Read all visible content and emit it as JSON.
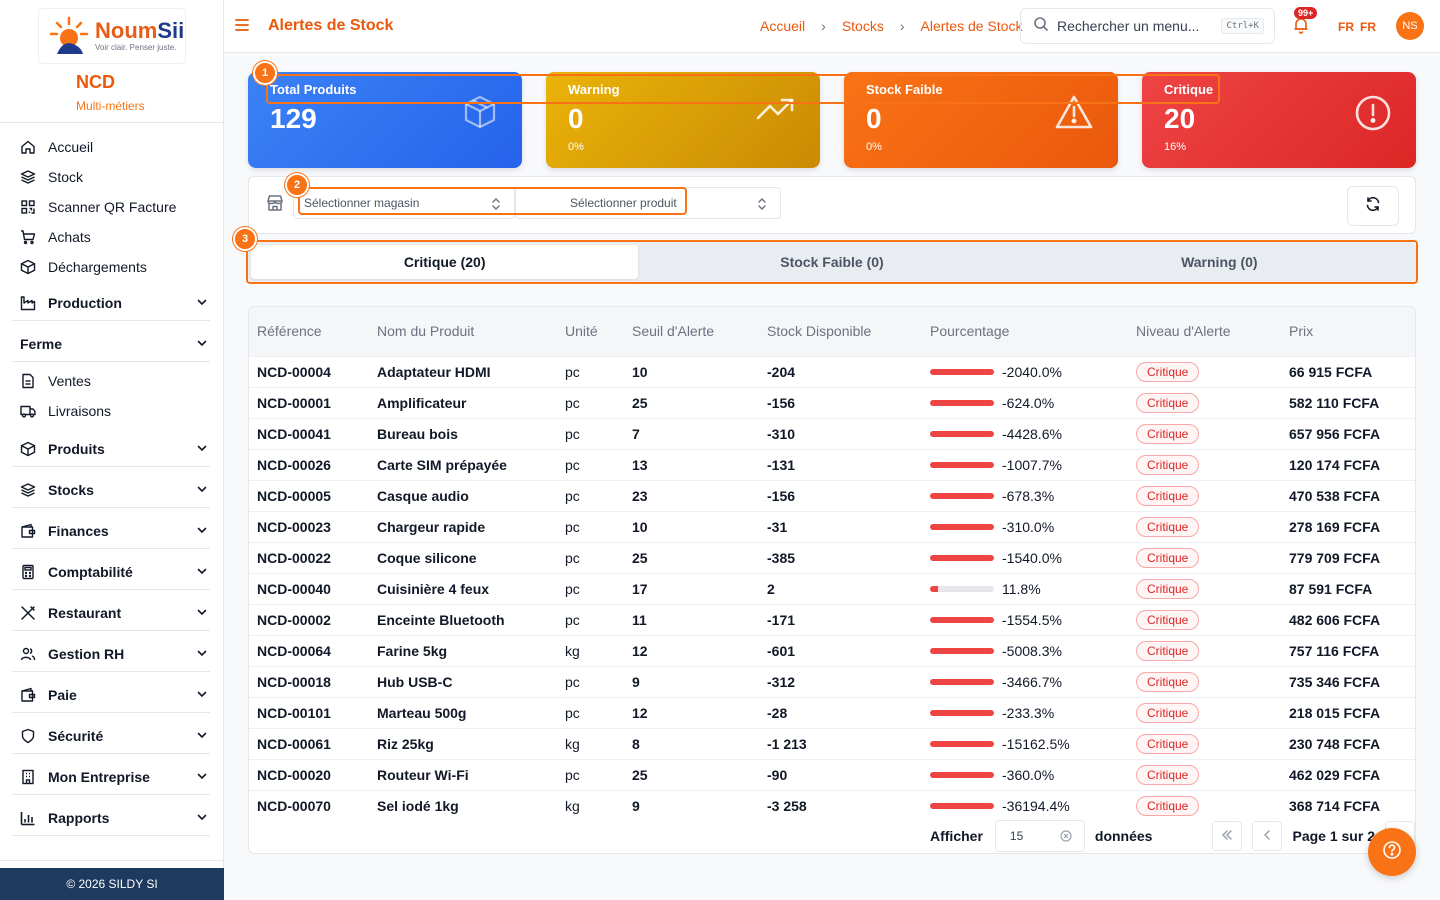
{
  "brand": {
    "logo_main": "Noum",
    "logo_accent": "Sii",
    "tagline": "Voir clair. Penser juste.",
    "org_name": "NCD",
    "org_sub": "Multi-métiers"
  },
  "sidebar": {
    "top_items": [
      {
        "label": "Accueil",
        "icon": "home-icon"
      },
      {
        "label": "Stock",
        "icon": "layers-icon"
      },
      {
        "label": "Scanner QR Facture",
        "icon": "qr-icon"
      },
      {
        "label": "Achats",
        "icon": "cart-icon"
      },
      {
        "label": "Déchargements",
        "icon": "box-icon"
      }
    ],
    "production": "Production",
    "ferme": "Ferme",
    "ferme_items": [
      {
        "label": "Ventes",
        "icon": "doc-icon"
      },
      {
        "label": "Livraisons",
        "icon": "truck-icon"
      }
    ],
    "groups": [
      {
        "label": "Produits",
        "icon": "box-icon"
      },
      {
        "label": "Stocks",
        "icon": "layers-icon"
      },
      {
        "label": "Finances",
        "icon": "wallet-icon"
      },
      {
        "label": "Comptabilité",
        "icon": "calculator-icon"
      },
      {
        "label": "Restaurant",
        "icon": "utensils-icon"
      },
      {
        "label": "Gestion RH",
        "icon": "users-icon"
      },
      {
        "label": "Paie",
        "icon": "wallet-icon"
      },
      {
        "label": "Sécurité",
        "icon": "shield-icon"
      },
      {
        "label": "Mon Entreprise",
        "icon": "building-icon"
      },
      {
        "label": "Rapports",
        "icon": "chart-icon"
      }
    ],
    "footer": "© 2026 SILDY SI"
  },
  "header": {
    "title": "Alertes de Stock",
    "breadcrumb": [
      "Accueil",
      "Stocks",
      "Alertes de Stock"
    ],
    "search_placeholder": "Rechercher un menu...",
    "shortcut": "Ctrl+K",
    "notif_count": "99+",
    "lang1": "FR",
    "lang2": "FR",
    "avatar": "NS"
  },
  "cards": [
    {
      "title": "Total Produits",
      "value": "129",
      "pct": ""
    },
    {
      "title": "Warning",
      "value": "0",
      "pct": "0%"
    },
    {
      "title": "Stock Faible",
      "value": "0",
      "pct": "0%"
    },
    {
      "title": "Critique",
      "value": "20",
      "pct": "16%"
    }
  ],
  "filters": {
    "store_placeholder": "Sélectionner magasin",
    "product_placeholder": "Sélectionner produit"
  },
  "annotations": [
    "1",
    "2",
    "3"
  ],
  "tabs": [
    "Critique (20)",
    "Stock Faible (0)",
    "Warning (0)"
  ],
  "table": {
    "headers": [
      "Référence",
      "Nom du Produit",
      "Unité",
      "Seuil d'Alerte",
      "Stock Disponible",
      "Pourcentage",
      "Niveau d'Alerte",
      "Prix"
    ],
    "rows": [
      {
        "ref": "NCD-00004",
        "name": "Adaptateur HDMI",
        "unit": "pc",
        "seuil": "10",
        "stock": "-204",
        "pct": "-2040.0%",
        "fill": 100,
        "level": "Critique",
        "price": "66 915 FCFA"
      },
      {
        "ref": "NCD-00001",
        "name": "Amplificateur",
        "unit": "pc",
        "seuil": "25",
        "stock": "-156",
        "pct": "-624.0%",
        "fill": 100,
        "level": "Critique",
        "price": "582 110 FCFA"
      },
      {
        "ref": "NCD-00041",
        "name": "Bureau bois",
        "unit": "pc",
        "seuil": "7",
        "stock": "-310",
        "pct": "-4428.6%",
        "fill": 100,
        "level": "Critique",
        "price": "657 956 FCFA"
      },
      {
        "ref": "NCD-00026",
        "name": "Carte SIM prépayée",
        "unit": "pc",
        "seuil": "13",
        "stock": "-131",
        "pct": "-1007.7%",
        "fill": 100,
        "level": "Critique",
        "price": "120 174 FCFA"
      },
      {
        "ref": "NCD-00005",
        "name": "Casque audio",
        "unit": "pc",
        "seuil": "23",
        "stock": "-156",
        "pct": "-678.3%",
        "fill": 100,
        "level": "Critique",
        "price": "470 538 FCFA"
      },
      {
        "ref": "NCD-00023",
        "name": "Chargeur rapide",
        "unit": "pc",
        "seuil": "10",
        "stock": "-31",
        "pct": "-310.0%",
        "fill": 100,
        "level": "Critique",
        "price": "278 169 FCFA"
      },
      {
        "ref": "NCD-00022",
        "name": "Coque silicone",
        "unit": "pc",
        "seuil": "25",
        "stock": "-385",
        "pct": "-1540.0%",
        "fill": 100,
        "level": "Critique",
        "price": "779 709 FCFA"
      },
      {
        "ref": "NCD-00040",
        "name": "Cuisinière 4 feux",
        "unit": "pc",
        "seuil": "17",
        "stock": "2",
        "pct": "11.8%",
        "fill": 11.8,
        "level": "Critique",
        "price": "87 591 FCFA"
      },
      {
        "ref": "NCD-00002",
        "name": "Enceinte Bluetooth",
        "unit": "pc",
        "seuil": "11",
        "stock": "-171",
        "pct": "-1554.5%",
        "fill": 100,
        "level": "Critique",
        "price": "482 606 FCFA"
      },
      {
        "ref": "NCD-00064",
        "name": "Farine 5kg",
        "unit": "kg",
        "seuil": "12",
        "stock": "-601",
        "pct": "-5008.3%",
        "fill": 100,
        "level": "Critique",
        "price": "757 116 FCFA"
      },
      {
        "ref": "NCD-00018",
        "name": "Hub USB-C",
        "unit": "pc",
        "seuil": "9",
        "stock": "-312",
        "pct": "-3466.7%",
        "fill": 100,
        "level": "Critique",
        "price": "735 346 FCFA"
      },
      {
        "ref": "NCD-00101",
        "name": "Marteau 500g",
        "unit": "pc",
        "seuil": "12",
        "stock": "-28",
        "pct": "-233.3%",
        "fill": 100,
        "level": "Critique",
        "price": "218 015 FCFA"
      },
      {
        "ref": "NCD-00061",
        "name": "Riz 25kg",
        "unit": "kg",
        "seuil": "8",
        "stock": "-1 213",
        "pct": "-15162.5%",
        "fill": 100,
        "level": "Critique",
        "price": "230 748 FCFA"
      },
      {
        "ref": "NCD-00020",
        "name": "Routeur Wi-Fi",
        "unit": "pc",
        "seuil": "25",
        "stock": "-90",
        "pct": "-360.0%",
        "fill": 100,
        "level": "Critique",
        "price": "462 029 FCFA"
      },
      {
        "ref": "NCD-00070",
        "name": "Sel iodé 1kg",
        "unit": "kg",
        "seuil": "9",
        "stock": "-3 258",
        "pct": "-36194.4%",
        "fill": 100,
        "level": "Critique",
        "price": "368 714 FCFA"
      }
    ]
  },
  "pager": {
    "show_label": "Afficher",
    "page_size": "15",
    "entries_label": "données",
    "page_info": "Page 1 sur 2"
  },
  "colors": {
    "accent": "#ea580c",
    "critical": "#dc2626",
    "blue": "#2563eb",
    "warning": "#ca8a04",
    "footer": "#1e3a5f"
  }
}
